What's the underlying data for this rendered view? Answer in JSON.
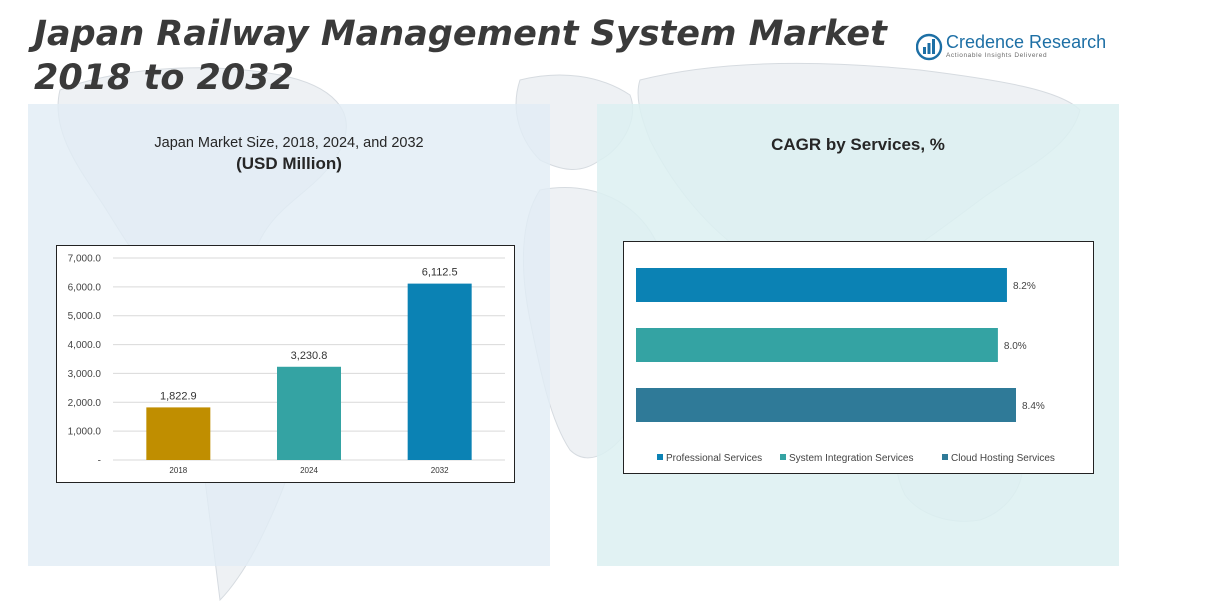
{
  "title": "Japan Railway Management System Market 2018 to 2032",
  "logo": {
    "name": "Credence Research",
    "tagline": "Actionable Insights Delivered"
  },
  "colors": {
    "bar_2018": "#c08e00",
    "bar_2024": "#34a3a3",
    "bar_2032": "#0b82b4",
    "professional": "#0b82b4",
    "system_integration": "#34a3a3",
    "cloud_hosting": "#2f7a98"
  },
  "chart_data": [
    {
      "type": "bar",
      "title": "Japan Market Size, 2018, 2024, and 2032",
      "subtitle": "(USD Million)",
      "categories": [
        "2018",
        "2024",
        "2032"
      ],
      "values": [
        1822.9,
        3230.8,
        6112.5
      ],
      "value_labels": [
        "1,822.9",
        "3,230.8",
        "6,112.5"
      ],
      "ylim": [
        0,
        7000
      ],
      "y_ticks": [
        0,
        1000,
        2000,
        3000,
        4000,
        5000,
        6000,
        7000
      ],
      "y_tick_labels": [
        "-",
        "1,000.0",
        "2,000.0",
        "3,000.0",
        "4,000.0",
        "5,000.0",
        "6,000.0",
        "7,000.0"
      ],
      "grid": true
    },
    {
      "type": "bar",
      "orientation": "horizontal",
      "title": "CAGR by Services, %",
      "series": [
        {
          "name": "Professional Services",
          "value": 8.2,
          "label": "8.2%"
        },
        {
          "name": "System Integration Services",
          "value": 8.0,
          "label": "8.0%"
        },
        {
          "name": "Cloud Hosting Services",
          "value": 8.4,
          "label": "8.4%"
        }
      ],
      "legend_position": "bottom"
    }
  ]
}
